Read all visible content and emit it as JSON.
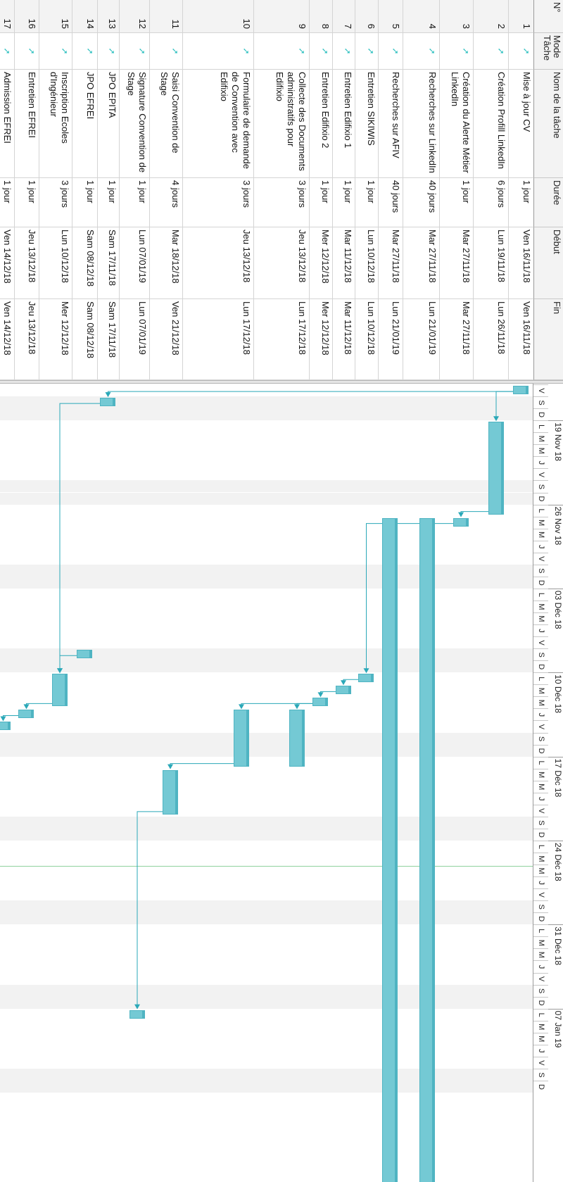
{
  "columns": {
    "id": "N°",
    "mode": "Mode Tâche",
    "name": "Nom de la tâche",
    "duration": "Durée",
    "start": "Début",
    "end": "Fin"
  },
  "tasks": [
    {
      "id": "1",
      "name": "Mise à jour CV",
      "duration": "1 jour",
      "start": "Ven 16/11/18",
      "end": "Ven 16/11/18"
    },
    {
      "id": "2",
      "name": "Création Profill LinkedIn",
      "duration": "6 jours",
      "start": "Lun 19/11/18",
      "end": "Lun 26/11/18"
    },
    {
      "id": "3",
      "name": "Création du Alerte Métier LinkedIn",
      "duration": "1 jour",
      "start": "Mar 27/11/18",
      "end": "Mar 27/11/18"
    },
    {
      "id": "4",
      "name": "Recherches sur LinkedIn",
      "duration": "40 jours",
      "start": "Mar 27/11/18",
      "end": "Lun 21/01/19"
    },
    {
      "id": "5",
      "name": "Recherches sur AFIV",
      "duration": "40 jours",
      "start": "Mar 27/11/18",
      "end": "Lun 21/01/19"
    },
    {
      "id": "6",
      "name": "Entretien SIKIWIS",
      "duration": "1 jour",
      "start": "Lun 10/12/18",
      "end": "Lun 10/12/18"
    },
    {
      "id": "7",
      "name": "Entretien Edifixio 1",
      "duration": "1 jour",
      "start": "Mar 11/12/18",
      "end": "Mar 11/12/18"
    },
    {
      "id": "8",
      "name": "Entretien Edifixio 2",
      "duration": "1 jour",
      "start": "Mer 12/12/18",
      "end": "Mer 12/12/18"
    },
    {
      "id": "9",
      "name": "Collecte des Documents administratifs pour Edifixio",
      "duration": "3 jours",
      "start": "Jeu 13/12/18",
      "end": "Lun 17/12/18"
    },
    {
      "id": "10",
      "name": "Formulaire de demande de Convention avec Edifixio",
      "duration": "3 jours",
      "start": "Jeu 13/12/18",
      "end": "Lun 17/12/18"
    },
    {
      "id": "11",
      "name": "Saisi Convention de Stage",
      "duration": "4 jours",
      "start": "Mar 18/12/18",
      "end": "Ven 21/12/18"
    },
    {
      "id": "12",
      "name": "Signature Convention de Stage",
      "duration": "1 jour",
      "start": "Lun 07/01/19",
      "end": "Lun 07/01/19"
    },
    {
      "id": "13",
      "name": "JPO EPITA",
      "duration": "1 jour",
      "start": "Sam 17/11/18",
      "end": "Sam 17/11/18"
    },
    {
      "id": "14",
      "name": "JPO EFREI",
      "duration": "1 jour",
      "start": "Sam 08/12/18",
      "end": "Sam 08/12/18"
    },
    {
      "id": "15",
      "name": "Inscription Ecoles d'Ingénieur",
      "duration": "3 jours",
      "start": "Lun 10/12/18",
      "end": "Mer 12/12/18"
    },
    {
      "id": "16",
      "name": "Entretien EFREI",
      "duration": "1 jour",
      "start": "Jeu 13/12/18",
      "end": "Jeu 13/12/18"
    },
    {
      "id": "17",
      "name": "Admission EFREI",
      "duration": "1 jour",
      "start": "Ven 14/12/18",
      "end": "Ven 14/12/18"
    }
  ],
  "timeline": {
    "weeks": [
      "19 Nov 18",
      "26 Nov 18",
      "03 Déc 18",
      "10 Déc 18",
      "17 Déc 18",
      "24 Déc 18",
      "31 Déc 18",
      "07 Jan 19"
    ],
    "leading_days": [
      "J",
      "V",
      "S",
      "D"
    ],
    "week_days": [
      "L",
      "M",
      "M",
      "J",
      "V",
      "S",
      "D"
    ]
  },
  "gantt": {
    "first_day": "Jeu 15/11/18",
    "bar_color": "#74c9d4",
    "link_color": "#2aa8b8",
    "today_line_color": "#8fd19e",
    "today": "Mer 26/12/18"
  }
}
